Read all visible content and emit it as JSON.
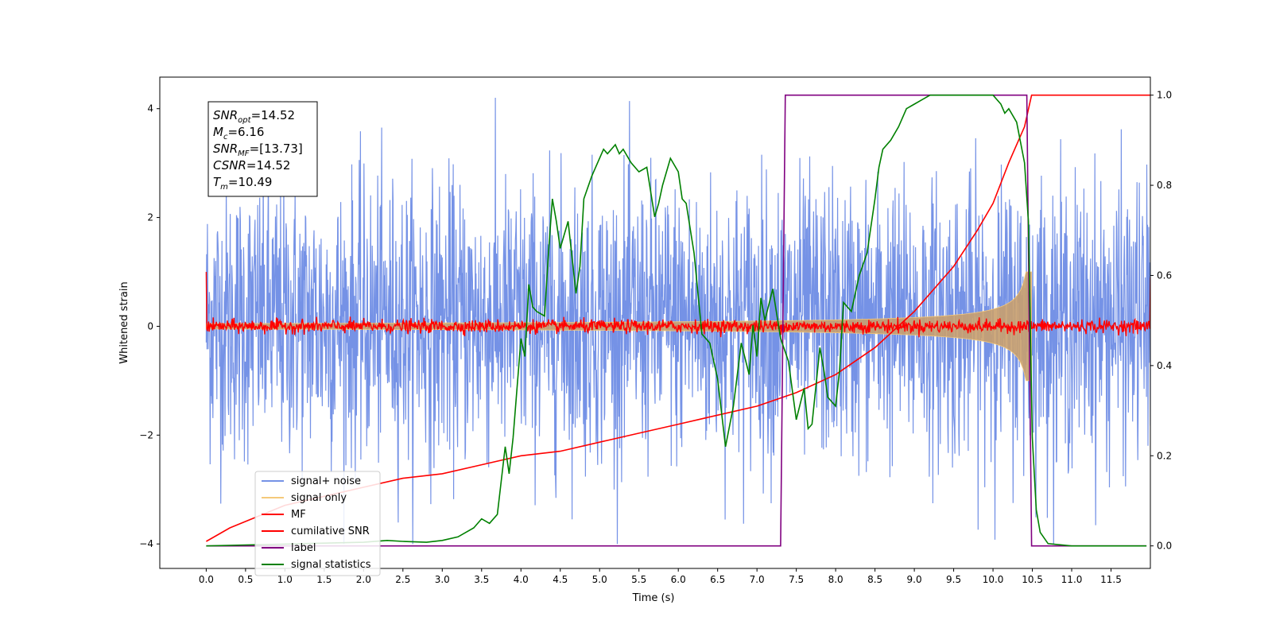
{
  "chart_data": {
    "type": "line",
    "xlabel": "Time (s)",
    "ylabel": "Whitened strain",
    "xlim": [
      -0.59,
      12.0
    ],
    "ylim": [
      -4.45,
      4.58
    ],
    "ylim_right": [
      -0.05,
      1.04
    ],
    "x_ticks": [
      "0.0",
      "0.5",
      "1.0",
      "1.5",
      "2.0",
      "2.5",
      "3.0",
      "3.5",
      "4.0",
      "4.5",
      "5.0",
      "5.5",
      "6.0",
      "6.5",
      "7.0",
      "7.5",
      "8.0",
      "8.5",
      "9.0",
      "9.5",
      "10.0",
      "10.5",
      "11.0",
      "11.5"
    ],
    "y_ticks_left": [
      "−4",
      "−2",
      "0",
      "2",
      "4"
    ],
    "y_ticks_right": [
      "0.0",
      "0.2",
      "0.4",
      "0.6",
      "0.8",
      "1.0"
    ],
    "annotation": {
      "snr_opt": "SNR",
      "snr_opt_sub": "opt",
      "snr_opt_val": "=14.52",
      "mc": "M",
      "mc_sub": "c",
      "mc_val": "=6.16",
      "snr_mf": "SNR",
      "snr_mf_sub": "MF",
      "snr_mf_val": "=[13.73]",
      "csnr": "CSNR",
      "csnr_val": "=14.52",
      "tm": "T",
      "tm_sub": "m",
      "tm_val": "=10.49"
    },
    "legend_position": "lower-left",
    "series": [
      {
        "name": "signal+ noise",
        "color": "#7592e6",
        "axis": "left",
        "kind": "noise",
        "x_range": [
          0.0,
          12.0
        ],
        "amplitude_range": [
          -4.0,
          4.2
        ]
      },
      {
        "name": "signal only",
        "color": "#f5c97a",
        "axis": "left",
        "kind": "chirp",
        "x_range": [
          0.0,
          10.49
        ],
        "envelope_start": 0.05,
        "envelope_end": 1.0
      },
      {
        "name": "MF",
        "color": "#ff0000",
        "axis": "left",
        "kind": "mf",
        "x_range": [
          0.0,
          12.0
        ],
        "level": 0.0,
        "spread": 0.1,
        "edge_values": [
          1.0,
          0.9
        ]
      },
      {
        "name": "cumilative SNR",
        "color": "#ff0000",
        "axis": "right",
        "x": [
          0.0,
          0.3,
          1.0,
          1.5,
          2.0,
          2.5,
          3.0,
          3.5,
          4.0,
          4.5,
          5.0,
          5.5,
          6.0,
          6.5,
          7.0,
          7.5,
          8.0,
          8.5,
          9.0,
          9.5,
          9.8,
          10.0,
          10.2,
          10.4,
          10.49,
          12.0
        ],
        "y": [
          0.01,
          0.04,
          0.09,
          0.11,
          0.13,
          0.15,
          0.16,
          0.18,
          0.2,
          0.21,
          0.23,
          0.25,
          0.27,
          0.29,
          0.31,
          0.34,
          0.38,
          0.44,
          0.52,
          0.62,
          0.7,
          0.76,
          0.85,
          0.93,
          1.0,
          1.0
        ]
      },
      {
        "name": "label",
        "color": "#800080",
        "axis": "right",
        "x": [
          0.0,
          7.3,
          7.36,
          10.43,
          10.49,
          11.95
        ],
        "y": [
          0.0,
          0.0,
          1.0,
          1.0,
          0.0,
          0.0
        ]
      },
      {
        "name": "signal statistics",
        "color": "#008000",
        "axis": "right",
        "x": [
          0.0,
          0.5,
          1.0,
          1.5,
          2.0,
          2.3,
          2.5,
          2.8,
          3.0,
          3.2,
          3.4,
          3.5,
          3.6,
          3.7,
          3.8,
          3.85,
          3.9,
          4.0,
          4.05,
          4.1,
          4.15,
          4.2,
          4.3,
          4.35,
          4.4,
          4.45,
          4.5,
          4.6,
          4.7,
          4.75,
          4.8,
          4.9,
          5.0,
          5.05,
          5.1,
          5.2,
          5.25,
          5.3,
          5.4,
          5.5,
          5.6,
          5.7,
          5.75,
          5.8,
          5.9,
          6.0,
          6.05,
          6.1,
          6.2,
          6.3,
          6.4,
          6.5,
          6.6,
          6.7,
          6.8,
          6.9,
          6.95,
          7.0,
          7.05,
          7.1,
          7.2,
          7.3,
          7.4,
          7.5,
          7.6,
          7.65,
          7.7,
          7.8,
          7.85,
          7.9,
          8.0,
          8.05,
          8.1,
          8.2,
          8.3,
          8.4,
          8.5,
          8.55,
          8.6,
          8.7,
          8.8,
          8.9,
          9.0,
          9.1,
          9.2,
          9.3,
          9.4,
          9.5,
          9.7,
          9.9,
          10.0,
          10.1,
          10.15,
          10.2,
          10.3,
          10.4,
          10.45,
          10.5,
          10.55,
          10.6,
          10.7,
          11.0,
          11.5,
          11.95
        ],
        "y": [
          0.0,
          0.002,
          0.004,
          0.006,
          0.008,
          0.012,
          0.01,
          0.008,
          0.012,
          0.02,
          0.04,
          0.06,
          0.05,
          0.07,
          0.22,
          0.16,
          0.24,
          0.46,
          0.42,
          0.58,
          0.53,
          0.52,
          0.51,
          0.65,
          0.77,
          0.72,
          0.66,
          0.72,
          0.56,
          0.62,
          0.77,
          0.82,
          0.86,
          0.88,
          0.87,
          0.89,
          0.87,
          0.88,
          0.85,
          0.83,
          0.84,
          0.73,
          0.76,
          0.8,
          0.86,
          0.83,
          0.77,
          0.76,
          0.65,
          0.47,
          0.45,
          0.37,
          0.22,
          0.31,
          0.45,
          0.38,
          0.49,
          0.42,
          0.55,
          0.5,
          0.57,
          0.46,
          0.41,
          0.28,
          0.35,
          0.26,
          0.27,
          0.44,
          0.39,
          0.33,
          0.31,
          0.39,
          0.54,
          0.52,
          0.6,
          0.65,
          0.77,
          0.84,
          0.88,
          0.9,
          0.93,
          0.97,
          0.98,
          0.99,
          1.0,
          1.0,
          1.0,
          1.0,
          1.0,
          1.0,
          1.0,
          0.98,
          0.96,
          0.97,
          0.94,
          0.85,
          0.72,
          0.24,
          0.08,
          0.03,
          0.005,
          0.0,
          0.0,
          0.0
        ]
      }
    ]
  }
}
